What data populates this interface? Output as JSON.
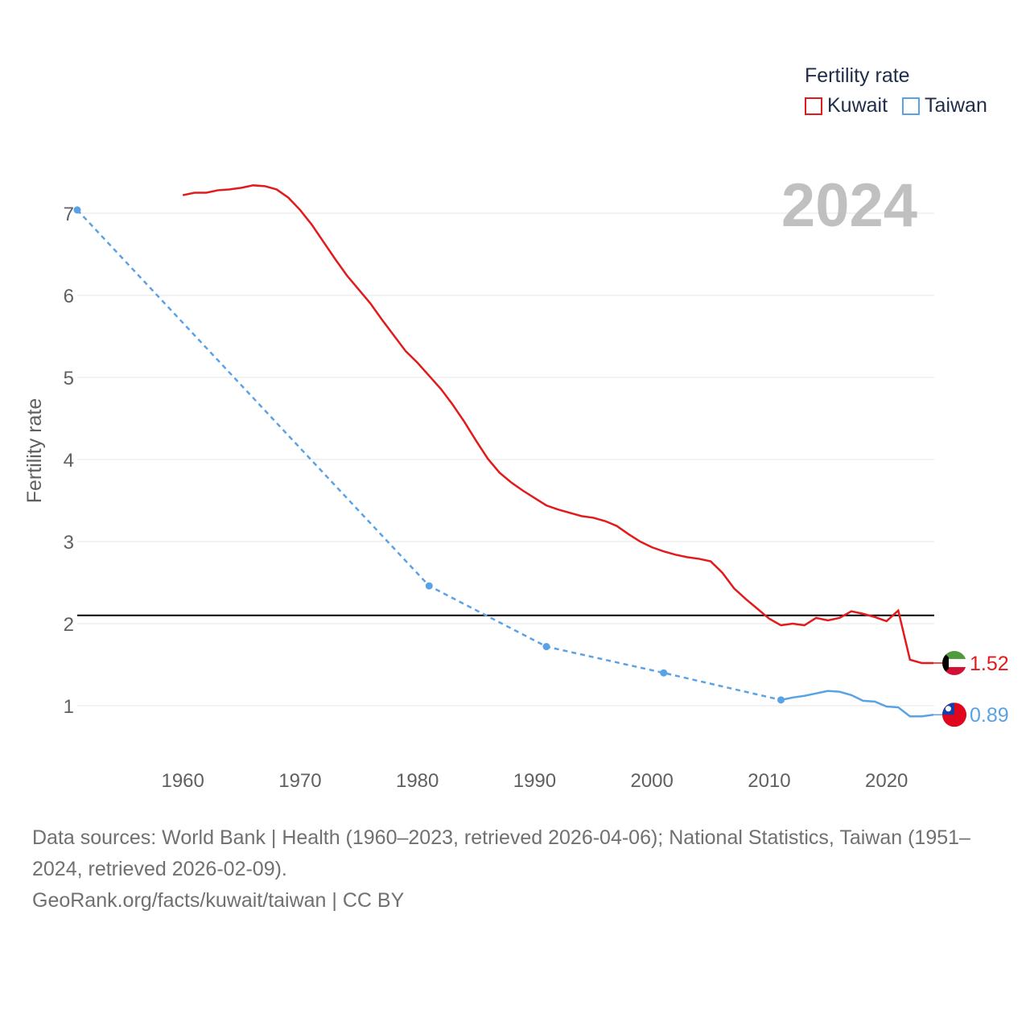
{
  "legend": {
    "title": "Fertility rate",
    "items": [
      {
        "name": "Kuwait",
        "color": "#e31a1c"
      },
      {
        "name": "Taiwan",
        "color": "#5aa2e6"
      }
    ]
  },
  "year_label": "2024",
  "footer": {
    "sources": "Data sources: World Bank | Health (1960–2023, retrieved 2026-04-06); National Statistics, Taiwan (1951–2024, retrieved 2026-02-09).",
    "credit": "GeoRank.org/facts/kuwait/taiwan | CC BY"
  },
  "chart_data": {
    "type": "line",
    "ylabel": "Fertility rate",
    "xlabel": "",
    "xlim": [
      1951,
      2024
    ],
    "ylim": [
      0.4,
      7.4
    ],
    "x_ticks": [
      1960,
      1970,
      1980,
      1990,
      2000,
      2010,
      2020
    ],
    "y_ticks": [
      1,
      2,
      3,
      4,
      5,
      6,
      7
    ],
    "reference_line": {
      "y": 2.1,
      "color": "#000000"
    },
    "series": [
      {
        "name": "Kuwait",
        "color": "#e31a1c",
        "style": "solid",
        "end_label": "1.52",
        "x": [
          1960,
          1961,
          1962,
          1963,
          1964,
          1965,
          1966,
          1967,
          1968,
          1969,
          1970,
          1971,
          1972,
          1973,
          1974,
          1975,
          1976,
          1977,
          1978,
          1979,
          1980,
          1981,
          1982,
          1983,
          1984,
          1985,
          1986,
          1987,
          1988,
          1989,
          1990,
          1991,
          1992,
          1993,
          1994,
          1995,
          1996,
          1997,
          1998,
          1999,
          2000,
          2001,
          2002,
          2003,
          2004,
          2005,
          2006,
          2007,
          2008,
          2009,
          2010,
          2011,
          2012,
          2013,
          2014,
          2015,
          2016,
          2017,
          2018,
          2019,
          2020,
          2021,
          2022,
          2023,
          2024
        ],
        "y": [
          7.22,
          7.25,
          7.25,
          7.28,
          7.29,
          7.31,
          7.34,
          7.33,
          7.29,
          7.19,
          7.04,
          6.86,
          6.65,
          6.44,
          6.24,
          6.07,
          5.9,
          5.7,
          5.51,
          5.32,
          5.18,
          5.02,
          4.86,
          4.67,
          4.46,
          4.23,
          4.01,
          3.84,
          3.72,
          3.62,
          3.53,
          3.44,
          3.39,
          3.35,
          3.31,
          3.29,
          3.25,
          3.19,
          3.09,
          3.0,
          2.93,
          2.88,
          2.84,
          2.81,
          2.79,
          2.76,
          2.62,
          2.43,
          2.3,
          2.18,
          2.06,
          1.98,
          2.0,
          1.98,
          2.07,
          2.04,
          2.07,
          2.15,
          2.12,
          2.08,
          2.03,
          2.16,
          1.56,
          1.52,
          1.52
        ]
      },
      {
        "name": "Taiwan",
        "color": "#5aa2e6",
        "style": "dashed-then-solid",
        "end_label": "0.89",
        "markers": [
          1951,
          1981,
          1991,
          2001,
          2011
        ],
        "dashed_until": 2011,
        "x": [
          1951,
          1981,
          1991,
          2001,
          2011,
          2012,
          2013,
          2014,
          2015,
          2016,
          2017,
          2018,
          2019,
          2020,
          2021,
          2022,
          2023,
          2024
        ],
        "y": [
          7.04,
          2.46,
          1.72,
          1.4,
          1.07,
          1.1,
          1.12,
          1.15,
          1.18,
          1.17,
          1.13,
          1.06,
          1.05,
          0.99,
          0.98,
          0.87,
          0.87,
          0.89
        ]
      }
    ]
  }
}
